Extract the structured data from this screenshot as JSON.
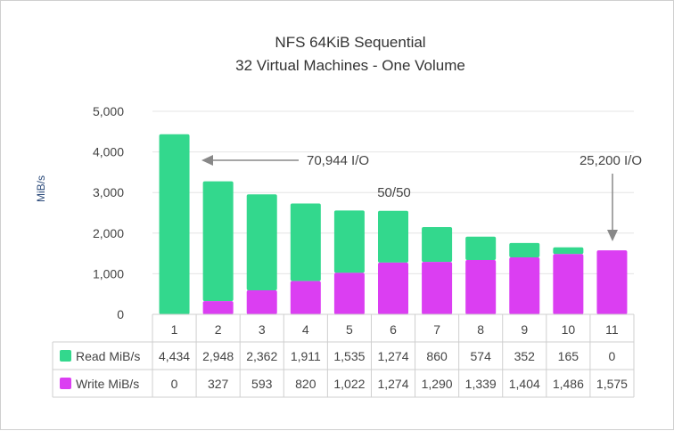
{
  "chart_data": {
    "type": "bar",
    "stacked": true,
    "title_line1": "NFS 64KiB Sequential",
    "title_line2": "32 Virtual Machines - One Volume",
    "ylabel": "MiB/s",
    "ylim": [
      0,
      5000
    ],
    "yticks": [
      "0",
      "1,000",
      "2,000",
      "3,000",
      "4,000",
      "5,000"
    ],
    "ytick_values": [
      0,
      1000,
      2000,
      3000,
      4000,
      5000
    ],
    "categories": [
      "1",
      "2",
      "3",
      "4",
      "5",
      "6",
      "7",
      "8",
      "9",
      "10",
      "11"
    ],
    "series": [
      {
        "name": "Read MiB/s",
        "color": "#33d88d",
        "values": [
          4434,
          2948,
          2362,
          1911,
          1535,
          1274,
          860,
          574,
          352,
          165,
          0
        ],
        "labels": [
          "4,434",
          "2,948",
          "2,362",
          "1,911",
          "1,535",
          "1,274",
          "860",
          "574",
          "352",
          "165",
          "0"
        ]
      },
      {
        "name": "Write MiB/s",
        "color": "#db3ef2",
        "values": [
          0,
          327,
          593,
          820,
          1022,
          1274,
          1290,
          1339,
          1404,
          1486,
          1575
        ],
        "labels": [
          "0",
          "327",
          "593",
          "820",
          "1,022",
          "1,274",
          "1,290",
          "1,339",
          "1,404",
          "1,486",
          "1,575"
        ]
      }
    ],
    "annotations": [
      {
        "text": "70,944 I/O",
        "arrow": "left"
      },
      {
        "text": "50/50"
      },
      {
        "text": "25,200 I/O",
        "arrow": "down"
      }
    ]
  }
}
